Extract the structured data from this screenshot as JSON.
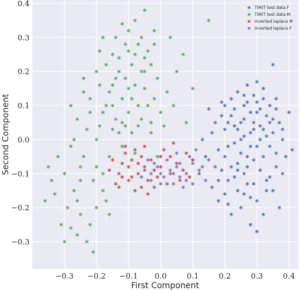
{
  "chart_data": {
    "type": "scatter",
    "title": "",
    "xlabel": "First Component",
    "ylabel": "Second Component",
    "xlim": [
      -0.4,
      0.43
    ],
    "ylim": [
      -0.38,
      0.41
    ],
    "xticks": [
      -0.3,
      -0.2,
      -0.1,
      0.0,
      0.1,
      0.2,
      0.3,
      0.4
    ],
    "yticks": [
      -0.3,
      -0.2,
      -0.1,
      0.0,
      0.1,
      0.2,
      0.3,
      0.4
    ],
    "xtick_labels": [
      "−0.3",
      "−0.2",
      "−0.1",
      "0.0",
      "0.1",
      "0.2",
      "0.3",
      "0.4"
    ],
    "ytick_labels": [
      "−0.3",
      "−0.2",
      "−0.1",
      "0.0",
      "0.1",
      "0.2",
      "0.3",
      "0.4"
    ],
    "grid": true,
    "background": "#eaeaf2",
    "legend_position": "top-right",
    "marker": "asterisk",
    "series": [
      {
        "name": "TIMIT test data F",
        "color": "#4c72b0",
        "points": [
          [
            0.28,
            -0.02
          ],
          [
            0.25,
            0.05
          ],
          [
            0.32,
            -0.05
          ],
          [
            0.3,
            0.08
          ],
          [
            0.22,
            -0.08
          ],
          [
            0.27,
            0.11
          ],
          [
            0.35,
            0.02
          ],
          [
            0.2,
            0.03
          ],
          [
            0.33,
            -0.12
          ],
          [
            0.24,
            -0.15
          ],
          [
            0.29,
            0.13
          ],
          [
            0.18,
            -0.03
          ],
          [
            0.31,
            0.04
          ],
          [
            0.26,
            -0.1
          ],
          [
            0.36,
            -0.08
          ],
          [
            0.23,
            0.09
          ],
          [
            0.34,
            0.1
          ],
          [
            0.21,
            -0.12
          ],
          [
            0.3,
            -0.18
          ],
          [
            0.27,
            -0.05
          ],
          [
            0.19,
            0.07
          ],
          [
            0.38,
            0.0
          ],
          [
            0.25,
            -0.2
          ],
          [
            0.32,
            0.15
          ],
          [
            0.17,
            -0.08
          ],
          [
            0.28,
            0.02
          ],
          [
            0.35,
            -0.15
          ],
          [
            0.22,
            0.12
          ],
          [
            0.3,
            -0.02
          ],
          [
            0.26,
            0.06
          ],
          [
            0.16,
            0.02
          ],
          [
            0.39,
            -0.05
          ],
          [
            0.24,
            -0.07
          ],
          [
            0.33,
            0.07
          ],
          [
            0.2,
            -0.16
          ],
          [
            0.29,
            -0.13
          ],
          [
            0.37,
            0.05
          ],
          [
            0.23,
            -0.01
          ],
          [
            0.31,
            -0.09
          ],
          [
            0.27,
            0.16
          ],
          [
            0.14,
            -0.05
          ],
          [
            0.4,
            0.08
          ],
          [
            0.25,
            0.0
          ],
          [
            0.34,
            -0.02
          ],
          [
            0.21,
            0.05
          ],
          [
            0.3,
            0.11
          ],
          [
            0.18,
            -0.12
          ],
          [
            0.36,
            0.12
          ],
          [
            0.26,
            -0.16
          ],
          [
            0.32,
            -0.22
          ],
          [
            0.15,
            0.09
          ],
          [
            0.28,
            -0.25
          ],
          [
            0.22,
            -0.22
          ],
          [
            0.38,
            -0.1
          ],
          [
            0.24,
            0.14
          ],
          [
            0.12,
            -0.1
          ],
          [
            0.35,
            0.22
          ],
          [
            0.29,
            0.05
          ],
          [
            0.2,
            -0.05
          ],
          [
            0.33,
            0.01
          ],
          [
            0.41,
            -0.03
          ],
          [
            0.27,
            -0.08
          ],
          [
            0.19,
            0.11
          ],
          [
            0.31,
            0.09
          ],
          [
            0.24,
            0.03
          ],
          [
            0.13,
            0.0
          ],
          [
            0.37,
            -0.2
          ],
          [
            0.26,
            0.1
          ],
          [
            0.3,
            -0.27
          ],
          [
            0.21,
            -0.19
          ],
          [
            0.34,
            0.05
          ],
          [
            0.17,
            0.05
          ],
          [
            0.28,
            0.08
          ],
          [
            0.23,
            -0.11
          ],
          [
            0.36,
            -0.04
          ],
          [
            0.1,
            -0.06
          ],
          [
            0.32,
            0.12
          ],
          [
            0.25,
            -0.04
          ],
          [
            0.19,
            -0.09
          ],
          [
            0.29,
            -0.06
          ],
          [
            0.3,
            0.17
          ],
          [
            0.26,
            0.01
          ],
          [
            0.33,
            -0.15
          ],
          [
            0.22,
            0.07
          ],
          [
            0.18,
            -0.18
          ],
          [
            0.35,
            0.06
          ],
          [
            0.27,
            -0.13
          ],
          [
            0.31,
            0.0
          ],
          [
            0.24,
            -0.09
          ],
          [
            0.38,
            0.03
          ],
          [
            0.2,
            0.1
          ],
          [
            0.29,
            0.03
          ],
          [
            0.16,
            -0.14
          ],
          [
            0.34,
            -0.11
          ],
          [
            0.26,
            0.13
          ],
          [
            0.21,
            -0.02
          ],
          [
            0.32,
            0.03
          ],
          [
            0.28,
            -0.17
          ],
          [
            0.36,
            0.09
          ],
          [
            0.23,
            0.04
          ]
        ]
      },
      {
        "name": "TIMIT test data M",
        "color": "#55a868",
        "points": [
          [
            -0.1,
            0.15
          ],
          [
            -0.05,
            0.2
          ],
          [
            -0.15,
            0.1
          ],
          [
            -0.08,
            0.25
          ],
          [
            -0.12,
            0.05
          ],
          [
            -0.02,
            0.12
          ],
          [
            -0.18,
            0.08
          ],
          [
            -0.06,
            0.3
          ],
          [
            -0.14,
            0.18
          ],
          [
            -0.03,
            0.05
          ],
          [
            -0.2,
            0.0
          ],
          [
            -0.09,
            0.22
          ],
          [
            -0.16,
            -0.05
          ],
          [
            -0.01,
            0.18
          ],
          [
            -0.11,
            0.28
          ],
          [
            -0.22,
            0.12
          ],
          [
            -0.07,
            0.1
          ],
          [
            -0.13,
            0.02
          ],
          [
            -0.04,
            0.26
          ],
          [
            -0.19,
            0.16
          ],
          [
            -0.25,
            -0.08
          ],
          [
            0.0,
            0.08
          ],
          [
            -0.17,
            0.22
          ],
          [
            -0.08,
            0.35
          ],
          [
            -0.23,
            0.03
          ],
          [
            -0.1,
            0.08
          ],
          [
            -0.28,
            -0.02
          ],
          [
            -0.05,
            0.15
          ],
          [
            -0.15,
            0.25
          ],
          [
            -0.02,
            0.32
          ],
          [
            -0.21,
            -0.12
          ],
          [
            -0.12,
            0.12
          ],
          [
            -0.26,
            0.06
          ],
          [
            0.02,
            0.14
          ],
          [
            -0.18,
            -0.1
          ],
          [
            -0.06,
            0.06
          ],
          [
            -0.3,
            -0.1
          ],
          [
            -0.14,
            0.3
          ],
          [
            -0.09,
            0.02
          ],
          [
            -0.24,
            0.18
          ],
          [
            -0.2,
            -0.2
          ],
          [
            -0.03,
            0.22
          ],
          [
            -0.27,
            -0.15
          ],
          [
            -0.11,
            0.18
          ],
          [
            -0.16,
            0.14
          ],
          [
            -0.22,
            -0.25
          ],
          [
            -0.07,
            0.28
          ],
          [
            -0.32,
            -0.05
          ],
          [
            0.04,
            0.1
          ],
          [
            -0.13,
            0.2
          ],
          [
            -0.25,
            -0.22
          ],
          [
            -0.19,
            0.04
          ],
          [
            -0.05,
            0.38
          ],
          [
            -0.29,
            -0.2
          ],
          [
            -0.1,
            0.26
          ],
          [
            -0.35,
            -0.08
          ],
          [
            -0.17,
            0.1
          ],
          [
            0.05,
            0.2
          ],
          [
            -0.23,
            -0.3
          ],
          [
            -0.08,
            0.16
          ],
          [
            -0.26,
            -0.28
          ],
          [
            -0.14,
            0.06
          ],
          [
            -0.02,
            0.28
          ],
          [
            -0.31,
            -0.25
          ],
          [
            -0.2,
            0.2
          ],
          [
            0.01,
            0.04
          ],
          [
            -0.28,
            0.1
          ],
          [
            -0.12,
            0.34
          ],
          [
            -0.18,
            -0.15
          ],
          [
            -0.04,
            0.1
          ],
          [
            -0.24,
            -0.05
          ],
          [
            -0.09,
            0.12
          ],
          [
            -0.33,
            -0.16
          ],
          [
            -0.15,
            0.03
          ],
          [
            -0.21,
            -0.33
          ],
          [
            0.07,
            0.25
          ],
          [
            -0.06,
            0.2
          ],
          [
            -0.27,
            0.0
          ],
          [
            -0.11,
            0.04
          ],
          [
            -0.36,
            -0.18
          ],
          [
            -0.19,
            0.26
          ],
          [
            -0.03,
            0.02
          ],
          [
            -0.25,
            -0.12
          ],
          [
            0.15,
            0.35
          ],
          [
            -0.16,
            -0.22
          ],
          [
            -0.01,
            -0.05
          ],
          [
            -0.3,
            -0.3
          ],
          [
            -0.13,
            0.24
          ],
          [
            0.08,
            0.05
          ],
          [
            -0.22,
            0.08
          ],
          [
            -0.07,
            0.04
          ],
          [
            -0.28,
            -0.26
          ],
          [
            -0.1,
            0.32
          ],
          [
            -0.17,
            -0.18
          ],
          [
            0.03,
            0.3
          ],
          [
            -0.24,
            0.14
          ],
          [
            -0.12,
            -0.02
          ],
          [
            -0.34,
            -0.12
          ],
          [
            -0.05,
            0.24
          ],
          [
            -0.2,
            -0.08
          ],
          [
            0.1,
            0.15
          ],
          [
            -0.15,
            0.16
          ],
          [
            -0.26,
            -0.18
          ],
          [
            -0.08,
            -0.04
          ],
          [
            -0.18,
            0.3
          ]
        ]
      },
      {
        "name": "Inverted laplace M",
        "color": "#c44e52",
        "points": [
          [
            -0.05,
            -0.08
          ],
          [
            -0.1,
            -0.12
          ],
          [
            0.0,
            -0.05
          ],
          [
            -0.08,
            -0.03
          ],
          [
            -0.12,
            -0.07
          ],
          [
            0.03,
            -0.1
          ],
          [
            -0.06,
            -0.14
          ],
          [
            -0.02,
            -0.09
          ],
          [
            -0.09,
            -0.06
          ],
          [
            0.05,
            -0.07
          ],
          [
            -0.13,
            -0.1
          ],
          [
            -0.04,
            -0.12
          ],
          [
            0.01,
            -0.03
          ],
          [
            -0.07,
            -0.1
          ],
          [
            -0.11,
            -0.04
          ],
          [
            0.06,
            -0.12
          ],
          [
            -0.03,
            -0.06
          ],
          [
            -0.14,
            -0.13
          ],
          [
            -0.01,
            -0.11
          ],
          [
            0.08,
            -0.04
          ],
          [
            -0.1,
            -0.08
          ],
          [
            -0.05,
            -0.02
          ],
          [
            0.02,
            -0.13
          ],
          [
            -0.08,
            -0.15
          ],
          [
            -0.15,
            -0.06
          ],
          [
            0.04,
            -0.01
          ],
          [
            -0.02,
            -0.14
          ],
          [
            -0.12,
            -0.11
          ],
          [
            0.07,
            -0.09
          ],
          [
            -0.06,
            -0.05
          ],
          [
            -0.09,
            -0.11
          ],
          [
            0.1,
            -0.06
          ],
          [
            -0.16,
            -0.09
          ],
          [
            0.0,
            -0.08
          ],
          [
            -0.04,
            -0.16
          ],
          [
            -0.11,
            -0.02
          ],
          [
            0.03,
            -0.05
          ],
          [
            -0.07,
            -0.07
          ],
          [
            0.09,
            -0.11
          ],
          [
            -0.13,
            -0.14
          ]
        ]
      },
      {
        "name": "Inverted laplace F",
        "color": "#8172b2",
        "points": [
          [
            0.0,
            -0.1
          ],
          [
            0.05,
            -0.08
          ],
          [
            -0.03,
            -0.12
          ],
          [
            0.08,
            -0.1
          ],
          [
            0.02,
            -0.06
          ],
          [
            -0.05,
            -0.09
          ],
          [
            0.1,
            -0.07
          ],
          [
            0.04,
            -0.13
          ],
          [
            -0.01,
            -0.08
          ],
          [
            0.12,
            -0.09
          ],
          [
            0.06,
            -0.11
          ],
          [
            -0.02,
            -0.14
          ],
          [
            0.09,
            -0.05
          ],
          [
            0.01,
            -0.11
          ],
          [
            0.14,
            -0.12
          ],
          [
            -0.04,
            -0.06
          ],
          [
            0.07,
            -0.14
          ],
          [
            0.03,
            -0.09
          ],
          [
            0.11,
            -0.03
          ],
          [
            -0.06,
            -0.11
          ],
          [
            0.05,
            -0.04
          ],
          [
            0.13,
            -0.08
          ],
          [
            0.0,
            -0.13
          ],
          [
            0.08,
            -0.12
          ],
          [
            -0.02,
            -0.07
          ],
          [
            0.15,
            -0.06
          ],
          [
            0.04,
            -0.1
          ],
          [
            0.1,
            -0.13
          ],
          [
            -0.03,
            -0.1
          ],
          [
            0.06,
            -0.07
          ]
        ]
      }
    ]
  }
}
